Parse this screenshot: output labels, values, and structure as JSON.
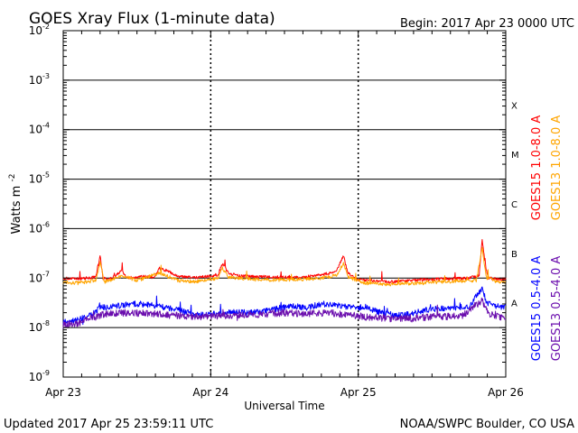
{
  "chart_data": {
    "type": "line",
    "title": "GOES Xray Flux (1-minute data)",
    "begin_label": "Begin:  2017 Apr 23 0000 UTC",
    "xlabel": "Universal Time",
    "ylabel": "Watts m",
    "ylabel_exponent": "-2",
    "x_ticks": [
      "Apr 23",
      "Apr 24",
      "Apr 25",
      "Apr 26"
    ],
    "xlim_days": [
      0,
      3
    ],
    "y_scale": "log",
    "ylim_exp": [
      -9,
      -2
    ],
    "y_tick_exponents": [
      "-2",
      "-3",
      "-4",
      "-5",
      "-6",
      "-7",
      "-8",
      "-9"
    ],
    "flare_classes": [
      "X",
      "M",
      "C",
      "B",
      "A"
    ],
    "grid": "horizontal lines at each decade; dotted verticals at day boundaries",
    "legend_placement": "right, vertical",
    "series": [
      {
        "name": "GOES15 1.0-8.0 A",
        "color": "#ff0000",
        "points": [
          [
            0,
            -7.0
          ],
          [
            0.08,
            -7.02
          ],
          [
            0.15,
            -7.0
          ],
          [
            0.22,
            -6.98
          ],
          [
            0.25,
            -6.55
          ],
          [
            0.27,
            -7.0
          ],
          [
            0.32,
            -7.02
          ],
          [
            0.4,
            -6.85
          ],
          [
            0.43,
            -7.0
          ],
          [
            0.55,
            -6.97
          ],
          [
            0.62,
            -6.98
          ],
          [
            0.65,
            -6.8
          ],
          [
            0.7,
            -6.85
          ],
          [
            0.78,
            -6.97
          ],
          [
            0.9,
            -6.99
          ],
          [
            1.0,
            -6.96
          ],
          [
            1.05,
            -6.93
          ],
          [
            1.08,
            -6.7
          ],
          [
            1.12,
            -6.9
          ],
          [
            1.2,
            -6.96
          ],
          [
            1.3,
            -6.97
          ],
          [
            1.45,
            -6.98
          ],
          [
            1.6,
            -6.99
          ],
          [
            1.75,
            -6.93
          ],
          [
            1.85,
            -6.88
          ],
          [
            1.9,
            -6.55
          ],
          [
            1.93,
            -6.9
          ],
          [
            2.0,
            -7.03
          ],
          [
            2.1,
            -7.05
          ],
          [
            2.2,
            -7.08
          ],
          [
            2.35,
            -7.05
          ],
          [
            2.45,
            -7.03
          ],
          [
            2.55,
            -7.02
          ],
          [
            2.65,
            -7.01
          ],
          [
            2.75,
            -7.0
          ],
          [
            2.82,
            -6.95
          ],
          [
            2.84,
            -6.2
          ],
          [
            2.86,
            -6.7
          ],
          [
            2.88,
            -7.0
          ],
          [
            2.95,
            -7.02
          ],
          [
            3.0,
            -7.02
          ]
        ]
      },
      {
        "name": "GOES13 1.0-8.0 A",
        "color": "#ffa500",
        "points": [
          [
            0,
            -7.08
          ],
          [
            0.1,
            -7.1
          ],
          [
            0.22,
            -7.05
          ],
          [
            0.25,
            -6.7
          ],
          [
            0.28,
            -7.08
          ],
          [
            0.4,
            -6.95
          ],
          [
            0.5,
            -7.05
          ],
          [
            0.65,
            -6.9
          ],
          [
            0.78,
            -7.05
          ],
          [
            0.9,
            -7.07
          ],
          [
            1.05,
            -7.0
          ],
          [
            1.08,
            -6.8
          ],
          [
            1.12,
            -6.98
          ],
          [
            1.3,
            -7.03
          ],
          [
            1.5,
            -7.04
          ],
          [
            1.75,
            -7.0
          ],
          [
            1.85,
            -6.95
          ],
          [
            1.9,
            -6.7
          ],
          [
            1.93,
            -6.98
          ],
          [
            2.05,
            -7.1
          ],
          [
            2.2,
            -7.13
          ],
          [
            2.4,
            -7.1
          ],
          [
            2.6,
            -7.07
          ],
          [
            2.8,
            -7.05
          ],
          [
            2.84,
            -6.4
          ],
          [
            2.87,
            -7.0
          ],
          [
            2.95,
            -7.08
          ],
          [
            3.0,
            -7.08
          ]
        ]
      },
      {
        "name": "GOES15 0.5-4.0 A",
        "color": "#0000ff",
        "points": [
          [
            0,
            -7.88
          ],
          [
            0.1,
            -7.85
          ],
          [
            0.18,
            -7.75
          ],
          [
            0.25,
            -7.6
          ],
          [
            0.4,
            -7.55
          ],
          [
            0.5,
            -7.52
          ],
          [
            0.6,
            -7.55
          ],
          [
            0.75,
            -7.62
          ],
          [
            0.85,
            -7.7
          ],
          [
            0.95,
            -7.75
          ],
          [
            1.05,
            -7.72
          ],
          [
            1.15,
            -7.68
          ],
          [
            1.25,
            -7.7
          ],
          [
            1.35,
            -7.68
          ],
          [
            1.45,
            -7.62
          ],
          [
            1.55,
            -7.56
          ],
          [
            1.65,
            -7.6
          ],
          [
            1.75,
            -7.52
          ],
          [
            1.85,
            -7.55
          ],
          [
            1.95,
            -7.6
          ],
          [
            2.05,
            -7.58
          ],
          [
            2.15,
            -7.7
          ],
          [
            2.25,
            -7.75
          ],
          [
            2.35,
            -7.72
          ],
          [
            2.45,
            -7.65
          ],
          [
            2.55,
            -7.62
          ],
          [
            2.65,
            -7.6
          ],
          [
            2.75,
            -7.58
          ],
          [
            2.84,
            -7.2
          ],
          [
            2.87,
            -7.5
          ],
          [
            2.95,
            -7.58
          ],
          [
            3.0,
            -7.58
          ]
        ]
      },
      {
        "name": "GOES13 0.5-4.0 A",
        "color": "#6a0dad",
        "points": [
          [
            0,
            -7.95
          ],
          [
            0.1,
            -7.92
          ],
          [
            0.2,
            -7.78
          ],
          [
            0.3,
            -7.72
          ],
          [
            0.45,
            -7.7
          ],
          [
            0.6,
            -7.72
          ],
          [
            0.75,
            -7.75
          ],
          [
            0.9,
            -7.78
          ],
          [
            1.05,
            -7.76
          ],
          [
            1.2,
            -7.74
          ],
          [
            1.35,
            -7.73
          ],
          [
            1.5,
            -7.7
          ],
          [
            1.65,
            -7.72
          ],
          [
            1.8,
            -7.7
          ],
          [
            1.95,
            -7.75
          ],
          [
            2.1,
            -7.8
          ],
          [
            2.25,
            -7.82
          ],
          [
            2.4,
            -7.8
          ],
          [
            2.55,
            -7.78
          ],
          [
            2.7,
            -7.77
          ],
          [
            2.84,
            -7.45
          ],
          [
            2.88,
            -7.72
          ],
          [
            2.95,
            -7.78
          ],
          [
            3.0,
            -7.8
          ]
        ]
      }
    ]
  },
  "footer": {
    "updated": "Updated 2017 Apr 25 23:59:11 UTC",
    "credit": "NOAA/SWPC Boulder, CO USA"
  }
}
